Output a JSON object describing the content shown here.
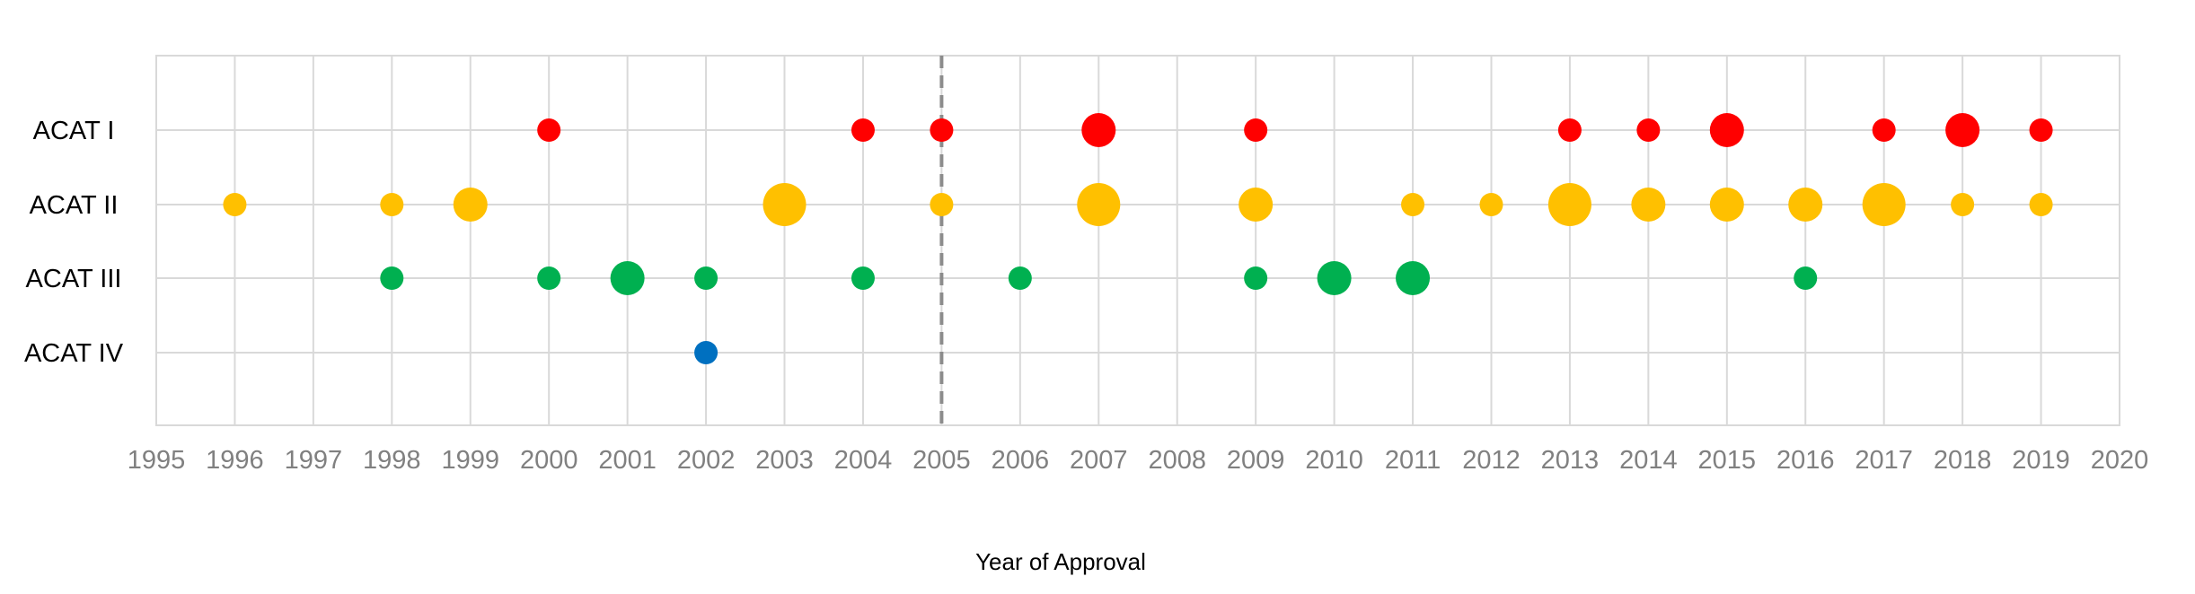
{
  "chart_data": {
    "type": "scatter",
    "xlabel": "Year of Approval",
    "ylabel": "",
    "xlim": [
      1995,
      2020
    ],
    "x_ticks": [
      "1995",
      "1996",
      "1997",
      "1998",
      "1999",
      "2000",
      "2001",
      "2002",
      "2003",
      "2004",
      "2005",
      "2006",
      "2007",
      "2008",
      "2009",
      "2010",
      "2011",
      "2012",
      "2013",
      "2014",
      "2015",
      "2016",
      "2017",
      "2018",
      "2019",
      "2020"
    ],
    "categories": [
      "ACAT I",
      "ACAT II",
      "ACAT III",
      "ACAT IV"
    ],
    "grid": true,
    "reference_line_x": 2005,
    "series": [
      {
        "category": "ACAT I",
        "color": "#ff0000",
        "points": [
          {
            "x": 2000,
            "size": 1
          },
          {
            "x": 2004,
            "size": 1
          },
          {
            "x": 2005,
            "size": 1
          },
          {
            "x": 2007,
            "size": 3
          },
          {
            "x": 2009,
            "size": 1
          },
          {
            "x": 2013,
            "size": 1
          },
          {
            "x": 2014,
            "size": 1
          },
          {
            "x": 2015,
            "size": 3
          },
          {
            "x": 2017,
            "size": 1
          },
          {
            "x": 2018,
            "size": 3
          },
          {
            "x": 2019,
            "size": 1
          }
        ]
      },
      {
        "category": "ACAT II",
        "color": "#ffc000",
        "points": [
          {
            "x": 1996,
            "size": 1
          },
          {
            "x": 1998,
            "size": 1
          },
          {
            "x": 1999,
            "size": 3
          },
          {
            "x": 2003,
            "size": 6
          },
          {
            "x": 2005,
            "size": 1
          },
          {
            "x": 2007,
            "size": 6
          },
          {
            "x": 2009,
            "size": 3
          },
          {
            "x": 2011,
            "size": 1
          },
          {
            "x": 2012,
            "size": 1
          },
          {
            "x": 2013,
            "size": 6
          },
          {
            "x": 2014,
            "size": 3
          },
          {
            "x": 2015,
            "size": 3
          },
          {
            "x": 2016,
            "size": 3
          },
          {
            "x": 2017,
            "size": 6
          },
          {
            "x": 2018,
            "size": 1
          },
          {
            "x": 2019,
            "size": 1
          }
        ]
      },
      {
        "category": "ACAT III",
        "color": "#00b050",
        "points": [
          {
            "x": 1998,
            "size": 1
          },
          {
            "x": 2000,
            "size": 1
          },
          {
            "x": 2001,
            "size": 3
          },
          {
            "x": 2002,
            "size": 1
          },
          {
            "x": 2004,
            "size": 1
          },
          {
            "x": 2006,
            "size": 1
          },
          {
            "x": 2009,
            "size": 1
          },
          {
            "x": 2010,
            "size": 3
          },
          {
            "x": 2011,
            "size": 3
          },
          {
            "x": 2016,
            "size": 1
          }
        ]
      },
      {
        "category": "ACAT IV",
        "color": "#0070c0",
        "points": [
          {
            "x": 2002,
            "size": 1
          }
        ]
      }
    ]
  }
}
